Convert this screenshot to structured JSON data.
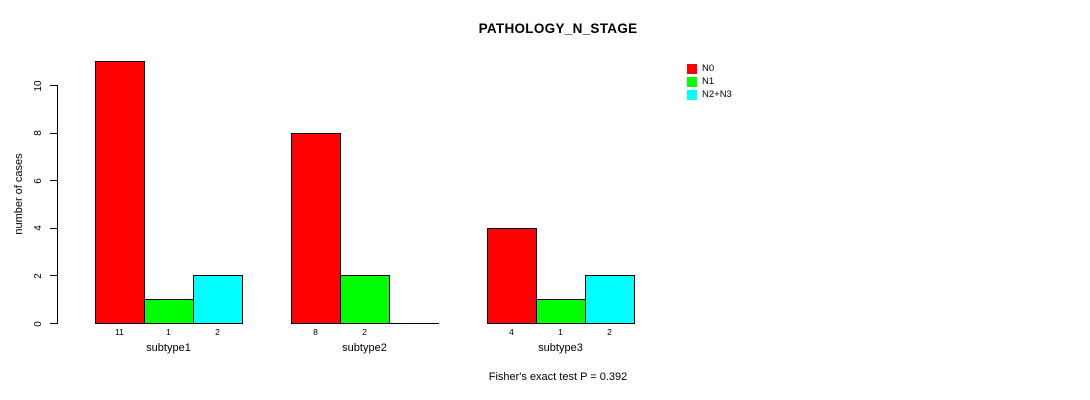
{
  "chart_data": {
    "type": "bar",
    "title": "PATHOLOGY_N_STAGE",
    "ylabel": "number of cases",
    "xlabel": "",
    "caption": "Fisher's exact test P = 0.392",
    "categories": [
      "subtype1",
      "subtype2",
      "subtype3"
    ],
    "series": [
      {
        "name": "N0",
        "color": "#ff0000",
        "values": [
          11,
          8,
          4
        ]
      },
      {
        "name": "N1",
        "color": "#00ff00",
        "values": [
          1,
          2,
          1
        ]
      },
      {
        "name": "N2+N3",
        "color": "#00ffff",
        "values": [
          2,
          0,
          2
        ]
      }
    ],
    "bar_value_labels": [
      [
        "11",
        "1",
        "2"
      ],
      [
        "8",
        "2",
        ""
      ],
      [
        "4",
        "1",
        "2"
      ]
    ],
    "yticks": [
      0,
      2,
      4,
      6,
      8,
      10
    ],
    "ylim": [
      0,
      10
    ],
    "grid": false,
    "legend_position": "top-right",
    "axis_color": "#000000",
    "background_color": "#ffffff"
  }
}
